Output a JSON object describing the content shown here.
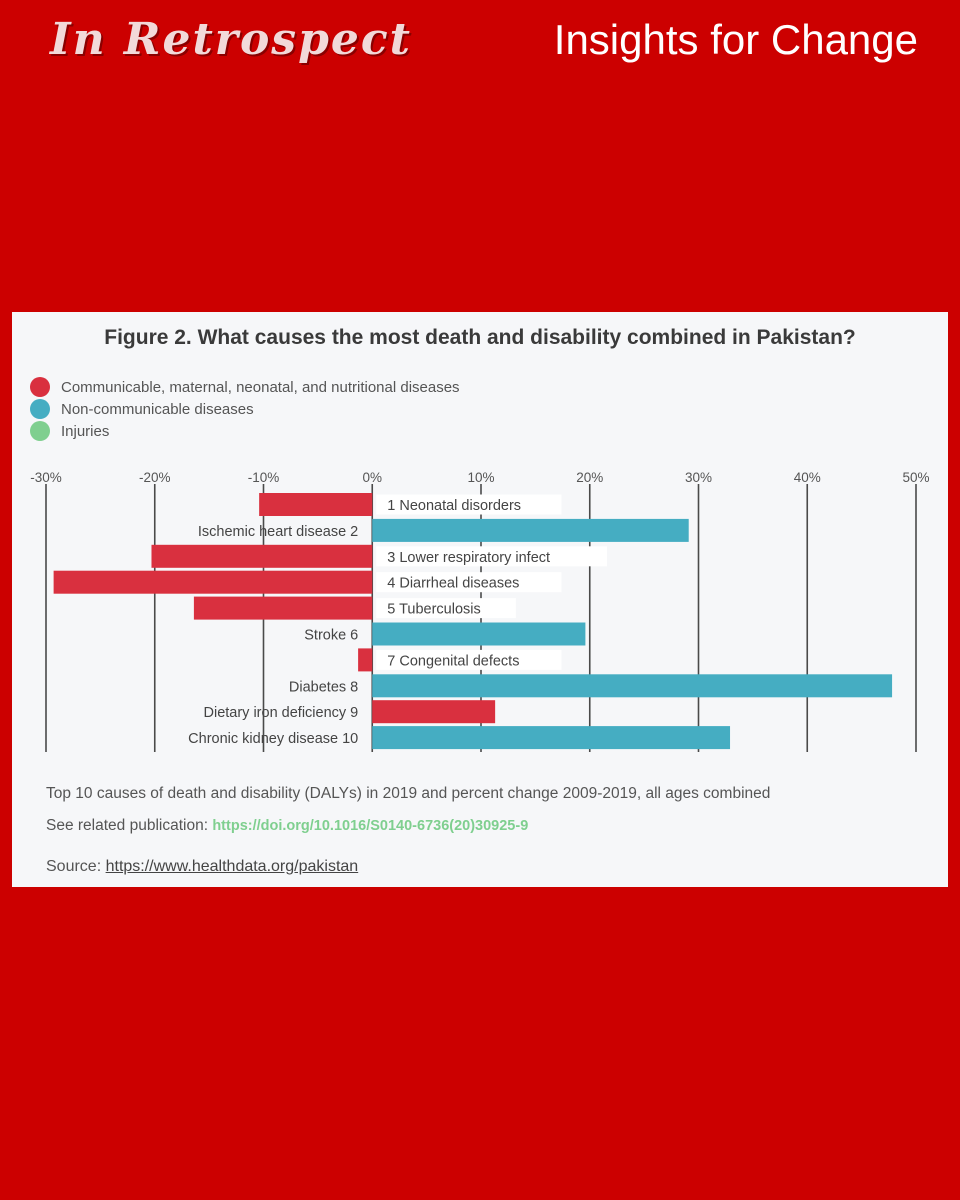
{
  "header": {
    "brand": "In Retrospect",
    "tagline": "Insights for Change"
  },
  "colors": {
    "background": "#cc0000",
    "communicable": "#d9303f",
    "non_communicable": "#45adc2",
    "injuries": "#7fcf8f"
  },
  "figure": {
    "title": "Figure 2. What causes the most death and disability combined in Pakistan?",
    "caption": "Top 10 causes of death and disability (DALYs) in 2019 and percent change 2009-2019, all ages combined",
    "related_label": "See related publication:",
    "related_link": "https://doi.org/10.1016/S0140-6736(20)30925-9",
    "source_label": "Source:",
    "source_link": "https://www.healthdata.org/pakistan"
  },
  "legend": [
    {
      "label": "Communicable, maternal, neonatal, and nutritional diseases",
      "color": "#d9303f"
    },
    {
      "label": "Non-communicable diseases",
      "color": "#45adc2"
    },
    {
      "label": "Injuries",
      "color": "#7fcf8f"
    }
  ],
  "chart_data": {
    "type": "bar",
    "orientation": "horizontal",
    "xlim": [
      -30,
      50
    ],
    "xticks": [
      -30,
      -20,
      -10,
      0,
      10,
      20,
      30,
      40,
      50
    ],
    "xtick_labels": [
      "-30%",
      "-20%",
      "-10%",
      "0%",
      "10%",
      "20%",
      "30%",
      "40%",
      "50%"
    ],
    "grid": true,
    "legend_position": "top-left",
    "categories": [
      "Neonatal disorders",
      "Ischemic heart disease",
      "Lower respiratory infect",
      "Diarrheal diseases",
      "Tuberculosis",
      "Stroke",
      "Congenital defects",
      "Diabetes",
      "Dietary iron deficiency",
      "Chronic kidney disease"
    ],
    "ranks": [
      1,
      2,
      3,
      4,
      5,
      6,
      7,
      8,
      9,
      10
    ],
    "values": [
      -10.4,
      29.1,
      -20.3,
      -29.3,
      -16.4,
      19.6,
      -1.3,
      47.8,
      11.3,
      32.9
    ],
    "groups": [
      "communicable",
      "non_communicable",
      "communicable",
      "communicable",
      "communicable",
      "non_communicable",
      "communicable",
      "non_communicable",
      "communicable",
      "non_communicable"
    ]
  }
}
